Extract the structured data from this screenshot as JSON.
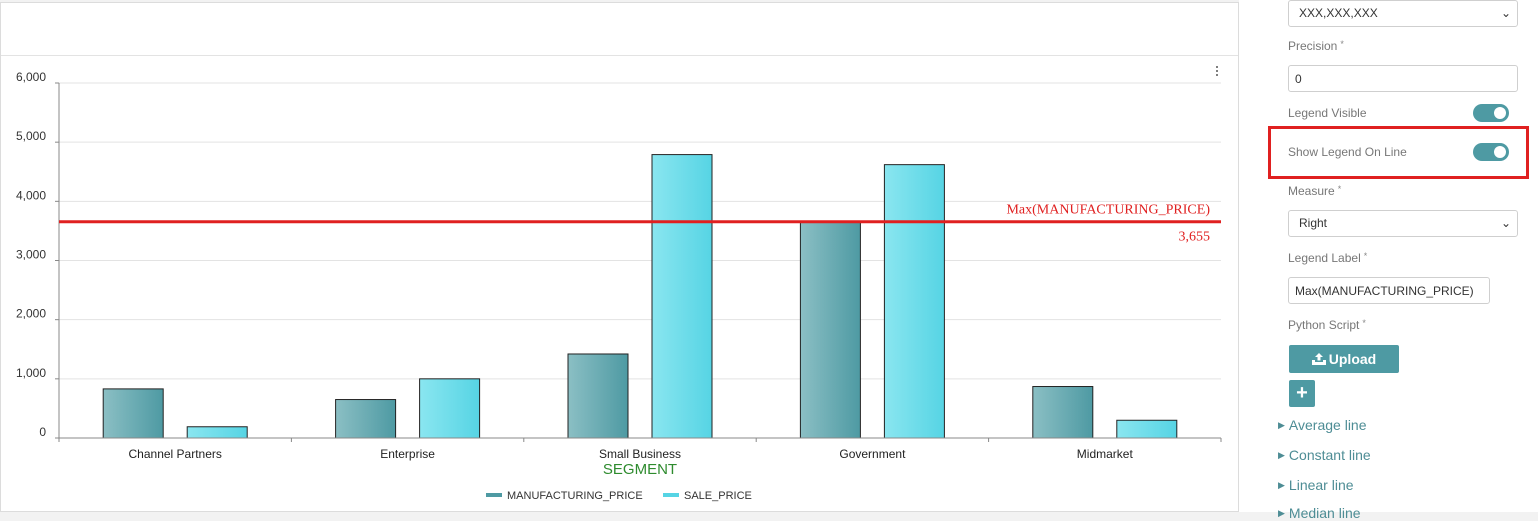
{
  "chart_data": {
    "type": "bar",
    "categories": [
      "Channel Partners",
      "Enterprise",
      "Small Business",
      "Government",
      "Midmarket"
    ],
    "series": [
      {
        "name": "MANUFACTURING_PRICE",
        "values": [
          830,
          650,
          1420,
          3655,
          870
        ],
        "color": "#5fa0a8"
      },
      {
        "name": "SALE_PRICE",
        "values": [
          190,
          1000,
          4790,
          4620,
          300
        ],
        "color": "#6fd8e6"
      }
    ],
    "xlabel": "SEGMENT",
    "ylabel": "",
    "ylim": [
      0,
      6000
    ],
    "yticks": [
      0,
      1000,
      2000,
      3000,
      4000,
      5000,
      6000
    ],
    "ytick_labels": [
      "0",
      "1,000",
      "2,000",
      "3,000",
      "4,000",
      "5,000",
      "6,000"
    ],
    "grid": true,
    "legend_position": "bottom",
    "reference_line": {
      "label": "Max(MANUFACTURING_PRICE)",
      "value": 3655,
      "value_label": "3,655",
      "color": "#e02020"
    }
  },
  "settings": {
    "format_value": "XXX,XXX,XXX",
    "precision_label": "Precision",
    "precision_value": "0",
    "legend_visible_label": "Legend Visible",
    "show_legend_on_line_label": "Show Legend On Line",
    "measure_label": "Measure",
    "measure_value": "Right",
    "legend_label_label": "Legend Label",
    "legend_label_value": "Max(MANUFACTURING_PRICE)",
    "python_script_label": "Python Script",
    "required_mark": "*",
    "upload_label": "Upload",
    "upload_icon": "upload-icon",
    "add_label": "+",
    "sections": [
      "Average line",
      "Constant line",
      "Linear line",
      "Median line"
    ]
  },
  "colors": {
    "accent": "#4e9aa3",
    "highlight": "#e02020"
  }
}
